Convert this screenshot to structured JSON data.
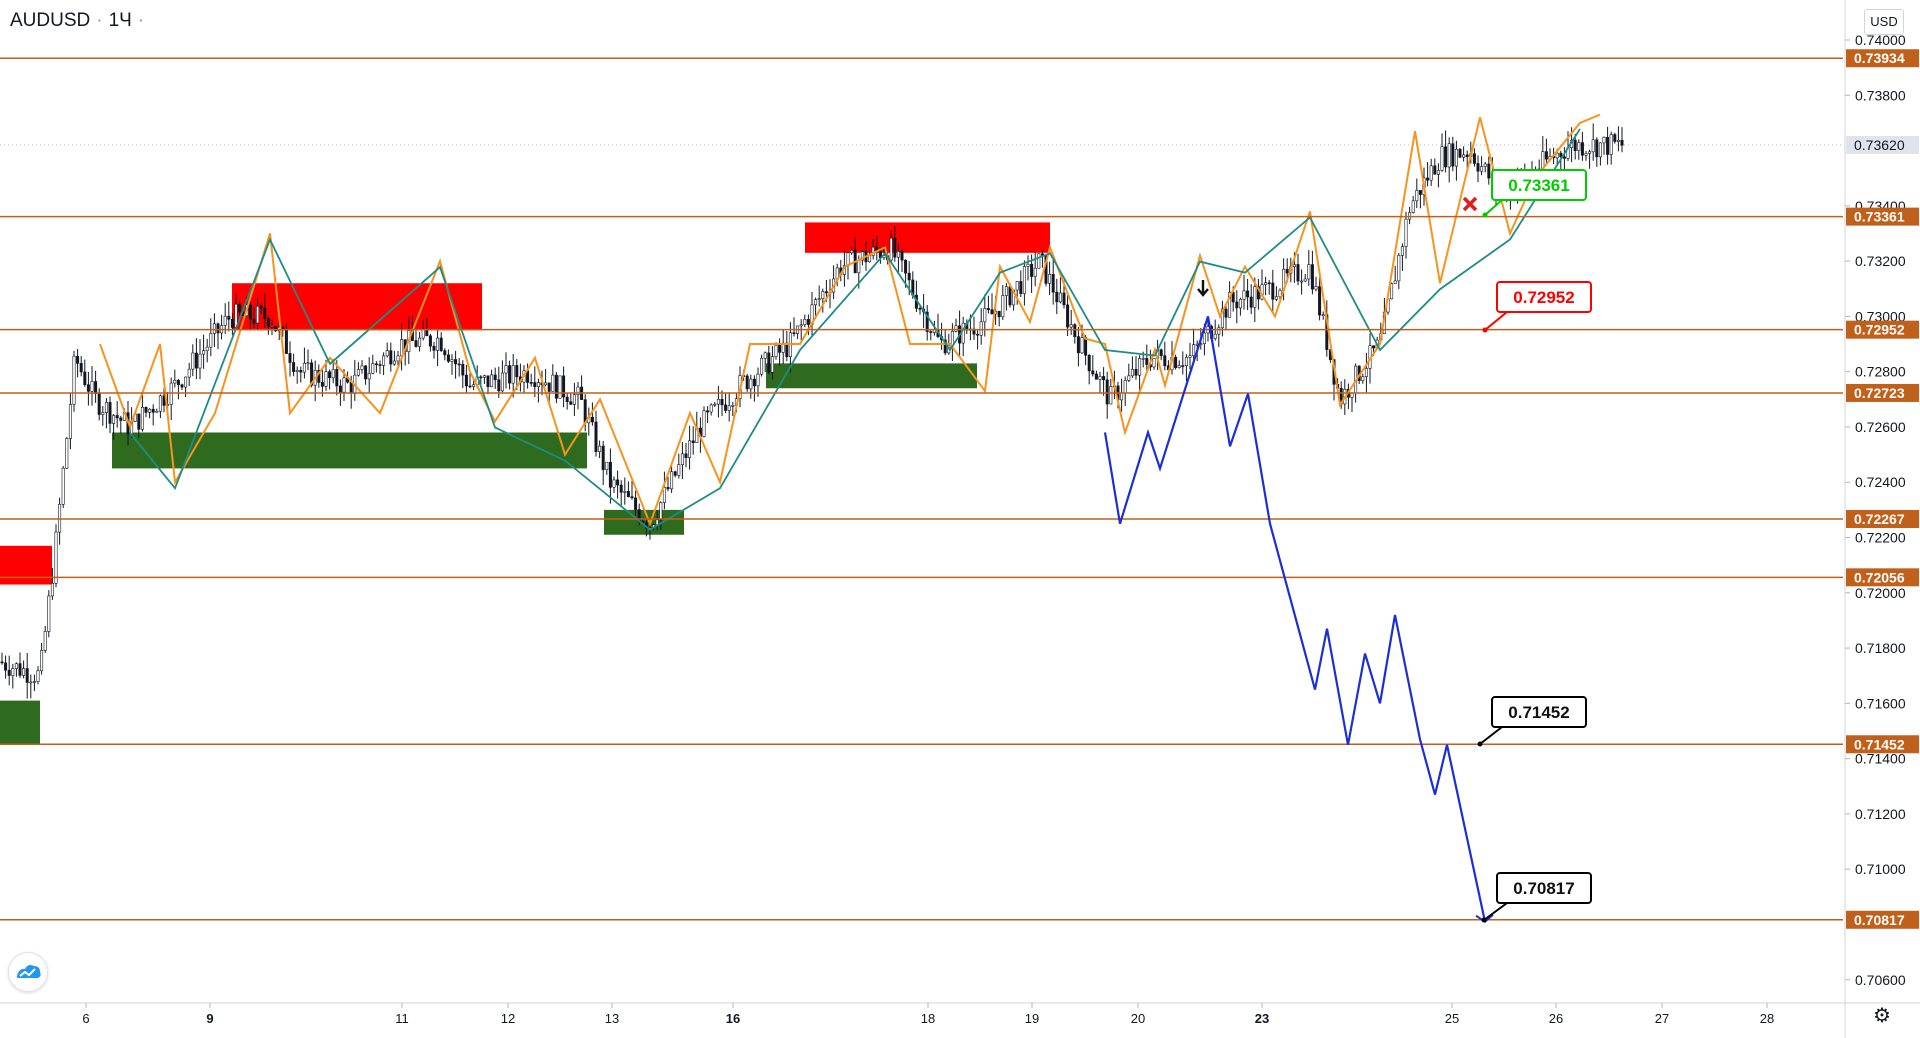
{
  "header": {
    "symbol": "AUDUSD",
    "interval": "1Ч",
    "currency": "USD"
  },
  "icons": {
    "logo": "tradingview-logo-icon",
    "settings": "gear-icon",
    "down_arrow": "down-arrow-icon",
    "cancel": "red-x-icon"
  },
  "colors": {
    "level": "#c0601a",
    "support": "#2e6b1f",
    "resistance": "#ff0000",
    "zigzag_orange": "#f7931e",
    "zigzag_teal": "#1e8c86",
    "projection": "#1a2fd6",
    "candle": "#131722",
    "callout_green": "#00cc00",
    "callout_red": "#ff0000",
    "callout_black": "#000000"
  },
  "chart_data": {
    "type": "candlestick",
    "symbol": "AUDUSD",
    "timeframe": "1Ч",
    "ylim": [
      0.7055,
      0.7405
    ],
    "y_ticks": [
      "0.74000",
      "0.73800",
      "0.73400",
      "0.73200",
      "0.73000",
      "0.72800",
      "0.72600",
      "0.72400",
      "0.72200",
      "0.72000",
      "0.71800",
      "0.71600",
      "0.71400",
      "0.71200",
      "0.71000",
      "0.70600"
    ],
    "x_ticks": [
      {
        "label": "6",
        "bold": false
      },
      {
        "label": "9",
        "bold": true
      },
      {
        "label": "11",
        "bold": false
      },
      {
        "label": "12",
        "bold": false
      },
      {
        "label": "13",
        "bold": false
      },
      {
        "label": "16",
        "bold": true
      },
      {
        "label": "18",
        "bold": false
      },
      {
        "label": "19",
        "bold": false
      },
      {
        "label": "20",
        "bold": false
      },
      {
        "label": "23",
        "bold": true
      },
      {
        "label": "25",
        "bold": false
      },
      {
        "label": "26",
        "bold": false
      },
      {
        "label": "27",
        "bold": false
      },
      {
        "label": "28",
        "bold": false
      }
    ],
    "last_price": "0.73620",
    "levels": [
      "0.73934",
      "0.73361",
      "0.72952",
      "0.72723",
      "0.72267",
      "0.72056",
      "0.71452",
      "0.70817"
    ],
    "zones": [
      {
        "kind": "resistance",
        "from": 0.7295,
        "to": 0.7312
      },
      {
        "kind": "resistance",
        "from": 0.7323,
        "to": 0.7334
      },
      {
        "kind": "resistance",
        "from": 0.7203,
        "to": 0.7217
      },
      {
        "kind": "support",
        "from": 0.7245,
        "to": 0.7258
      },
      {
        "kind": "support",
        "from": 0.7221,
        "to": 0.723
      },
      {
        "kind": "support",
        "from": 0.7274,
        "to": 0.7283
      },
      {
        "kind": "support",
        "from": 0.7145,
        "to": 0.7161
      }
    ],
    "callouts": [
      {
        "label": "0.73361",
        "style": "green"
      },
      {
        "label": "0.72952",
        "style": "red"
      },
      {
        "label": "0.71452",
        "style": "black"
      },
      {
        "label": "0.70817",
        "style": "black"
      }
    ],
    "projection_path": [
      0.7258,
      0.7225,
      0.7258,
      0.7245,
      0.73,
      0.7253,
      0.7272,
      0.7225,
      0.7165,
      0.7187,
      0.7145,
      0.7178,
      0.716,
      0.7192,
      0.7147,
      0.7127,
      0.7145,
      0.7081
    ]
  }
}
